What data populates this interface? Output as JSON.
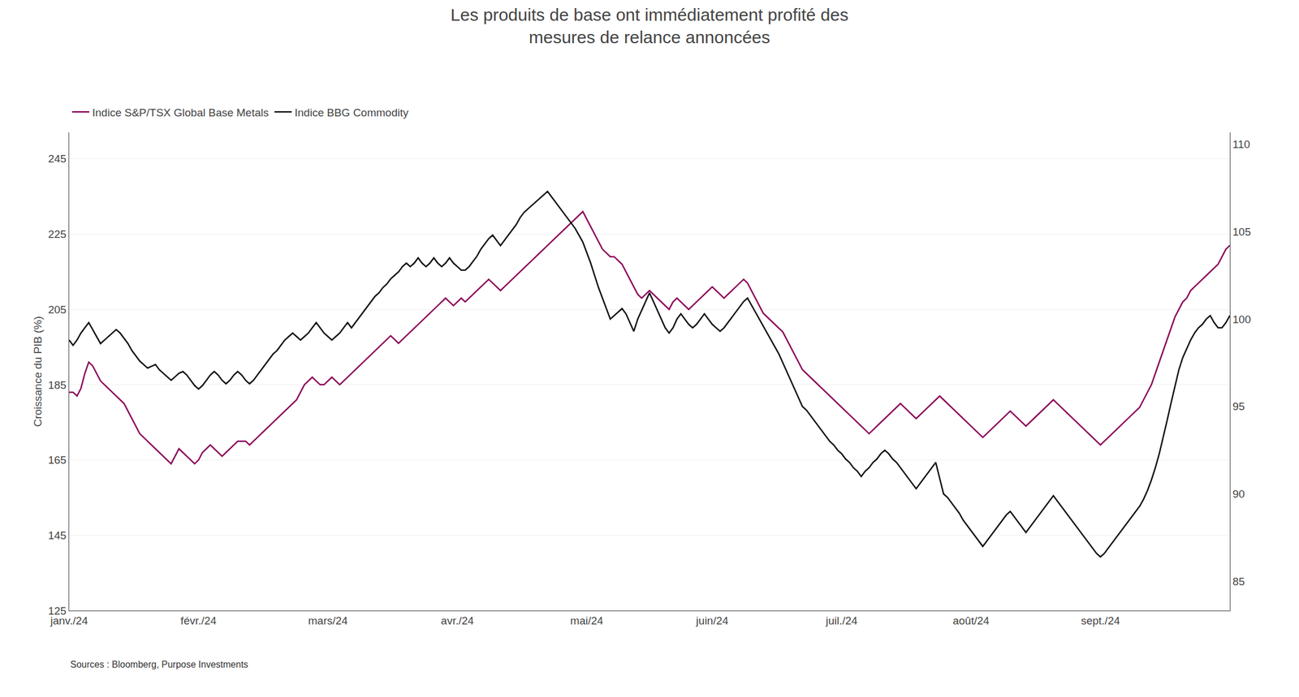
{
  "chart_data": {
    "type": "line",
    "title": "Les produits de base ont immédiatement profité des\nmesures de relance annoncées",
    "ylabel": "Croissance du PIB (%)",
    "annotations": [
      "Sources : Bloomberg, Purpose Investments"
    ],
    "legend": "upper left",
    "grid": true,
    "ylim": [
      125,
      252
    ],
    "yticks": [
      125,
      145,
      165,
      185,
      205,
      225,
      245
    ],
    "y2lim": [
      83.33,
      110.67
    ],
    "y2ticks": [
      85,
      90,
      95,
      100,
      105,
      110
    ],
    "categories": [
      "janv./24",
      null,
      null,
      null,
      null,
      null,
      null,
      null,
      null,
      null,
      null,
      null,
      null,
      null,
      null,
      null,
      null,
      null,
      null,
      null,
      null,
      null,
      null,
      null,
      null,
      null,
      null,
      null,
      null,
      null,
      null,
      null,
      null,
      "févr./24",
      null,
      null,
      null,
      null,
      null,
      null,
      null,
      null,
      null,
      null,
      null,
      null,
      null,
      null,
      null,
      null,
      null,
      null,
      null,
      null,
      null,
      null,
      null,
      null,
      null,
      null,
      null,
      null,
      null,
      null,
      null,
      null,
      "mars/24",
      null,
      null,
      null,
      null,
      null,
      null,
      null,
      null,
      null,
      null,
      null,
      null,
      null,
      null,
      null,
      null,
      null,
      null,
      null,
      null,
      null,
      null,
      null,
      null,
      null,
      null,
      null,
      null,
      null,
      null,
      null,
      null,
      "avr./24",
      null,
      null,
      null,
      null,
      null,
      null,
      null,
      null,
      null,
      null,
      null,
      null,
      null,
      null,
      null,
      null,
      null,
      null,
      null,
      null,
      null,
      null,
      null,
      null,
      null,
      null,
      null,
      null,
      null,
      null,
      null,
      null,
      "mai/24",
      null,
      null,
      null,
      null,
      null,
      null,
      null,
      null,
      null,
      null,
      null,
      null,
      null,
      null,
      null,
      null,
      null,
      null,
      null,
      null,
      null,
      null,
      null,
      null,
      null,
      null,
      null,
      null,
      null,
      null,
      null,
      "juin/24",
      null,
      null,
      null,
      null,
      null,
      null,
      null,
      null,
      null,
      null,
      null,
      null,
      null,
      null,
      null,
      null,
      null,
      null,
      null,
      null,
      null,
      null,
      null,
      null,
      null,
      null,
      null,
      null,
      null,
      null,
      null,
      null,
      "juil./24",
      null,
      null,
      null,
      null,
      null,
      null,
      null,
      null,
      null,
      null,
      null,
      null,
      null,
      null,
      null,
      null,
      null,
      null,
      null,
      null,
      null,
      null,
      null,
      null,
      null,
      null,
      null,
      null,
      null,
      null,
      null,
      null,
      "août/24",
      null,
      null,
      null,
      null,
      null,
      null,
      null,
      null,
      null,
      null,
      null,
      null,
      null,
      null,
      null,
      null,
      null,
      null,
      null,
      null,
      null,
      null,
      null,
      null,
      null,
      null,
      null,
      null,
      null,
      null,
      null,
      null,
      "sept./24",
      null,
      null,
      null,
      null,
      null,
      null,
      null,
      null,
      null,
      null,
      null,
      null,
      null,
      null,
      null,
      null,
      null,
      null,
      null,
      null,
      null,
      null,
      null,
      null,
      null,
      null,
      null,
      null,
      null,
      null,
      null,
      null,
      null
    ],
    "series": [
      {
        "name": "Indice S&P/TSX Global Base Metals",
        "color": "#8B0057",
        "values": [
          183,
          183,
          182,
          184,
          188,
          191,
          190,
          188,
          186,
          185,
          184,
          183,
          182,
          181,
          180,
          178,
          176,
          174,
          172,
          171,
          170,
          169,
          168,
          167,
          166,
          165,
          164,
          166,
          168,
          167,
          166,
          165,
          164,
          165,
          167,
          168,
          169,
          168,
          167,
          166,
          167,
          168,
          169,
          170,
          170,
          170,
          169,
          170,
          171,
          172,
          173,
          174,
          175,
          176,
          177,
          178,
          179,
          180,
          181,
          183,
          185,
          186,
          187,
          186,
          185,
          185,
          186,
          187,
          186,
          185,
          186,
          187,
          188,
          189,
          190,
          191,
          192,
          193,
          194,
          195,
          196,
          197,
          198,
          197,
          196,
          197,
          198,
          199,
          200,
          201,
          202,
          203,
          204,
          205,
          206,
          207,
          208,
          207,
          206,
          207,
          208,
          207,
          208,
          209,
          210,
          211,
          212,
          213,
          212,
          211,
          210,
          211,
          212,
          213,
          214,
          215,
          216,
          217,
          218,
          219,
          220,
          221,
          222,
          223,
          224,
          225,
          226,
          227,
          228,
          229,
          230,
          231,
          229,
          227,
          225,
          223,
          221,
          220,
          219,
          219,
          218,
          217,
          215,
          213,
          211,
          209,
          208,
          209,
          210,
          209,
          208,
          207,
          206,
          205,
          207,
          208,
          207,
          206,
          205,
          206,
          207,
          208,
          209,
          210,
          211,
          210,
          209,
          208,
          209,
          210,
          211,
          212,
          213,
          212,
          210,
          208,
          206,
          204,
          203,
          202,
          201,
          200,
          199,
          197,
          195,
          193,
          191,
          189,
          188,
          187,
          186,
          185,
          184,
          183,
          182,
          181,
          180,
          179,
          178,
          177,
          176,
          175,
          174,
          173,
          172,
          173,
          174,
          175,
          176,
          177,
          178,
          179,
          180,
          179,
          178,
          177,
          176,
          177,
          178,
          179,
          180,
          181,
          182,
          181,
          180,
          179,
          178,
          177,
          176,
          175,
          174,
          173,
          172,
          171,
          172,
          173,
          174,
          175,
          176,
          177,
          178,
          177,
          176,
          175,
          174,
          175,
          176,
          177,
          178,
          179,
          180,
          181,
          180,
          179,
          178,
          177,
          176,
          175,
          174,
          173,
          172,
          171,
          170,
          169,
          170,
          171,
          172,
          173,
          174,
          175,
          176,
          177,
          178,
          179,
          181,
          183,
          185,
          188,
          191,
          194,
          197,
          200,
          203,
          205,
          207,
          208,
          210,
          211,
          212,
          213,
          214,
          215,
          216,
          217,
          219,
          221,
          222
        ]
      },
      {
        "name": "Indice BBG Commodity",
        "color": "#111111",
        "axis": "y2",
        "values": [
          98.8,
          98.5,
          98.8,
          99.2,
          99.5,
          99.8,
          99.4,
          99.0,
          98.6,
          98.8,
          99.0,
          99.2,
          99.4,
          99.2,
          98.9,
          98.6,
          98.2,
          97.9,
          97.6,
          97.4,
          97.2,
          97.3,
          97.4,
          97.1,
          96.9,
          96.7,
          96.5,
          96.7,
          96.9,
          97.0,
          96.8,
          96.5,
          96.2,
          96.0,
          96.2,
          96.5,
          96.8,
          97.0,
          96.8,
          96.5,
          96.3,
          96.5,
          96.8,
          97.0,
          96.8,
          96.5,
          96.3,
          96.5,
          96.8,
          97.1,
          97.4,
          97.7,
          98.0,
          98.2,
          98.5,
          98.8,
          99.0,
          99.2,
          99.0,
          98.8,
          99.0,
          99.2,
          99.5,
          99.8,
          99.5,
          99.2,
          99.0,
          98.8,
          99.0,
          99.2,
          99.5,
          99.8,
          99.5,
          99.8,
          100.1,
          100.4,
          100.7,
          101.0,
          101.3,
          101.5,
          101.8,
          102.0,
          102.3,
          102.5,
          102.7,
          103.0,
          103.2,
          103.0,
          103.2,
          103.5,
          103.2,
          103.0,
          103.2,
          103.5,
          103.2,
          103.0,
          103.2,
          103.5,
          103.2,
          103.0,
          102.8,
          102.8,
          103.0,
          103.3,
          103.6,
          104.0,
          104.3,
          104.6,
          104.8,
          104.5,
          104.2,
          104.5,
          104.8,
          105.1,
          105.4,
          105.8,
          106.1,
          106.3,
          106.5,
          106.7,
          106.9,
          107.1,
          107.3,
          107.0,
          106.7,
          106.4,
          106.1,
          105.8,
          105.5,
          105.2,
          104.8,
          104.4,
          103.8,
          103.2,
          102.5,
          101.8,
          101.2,
          100.6,
          100.0,
          100.2,
          100.4,
          100.6,
          100.3,
          99.8,
          99.3,
          100.0,
          100.5,
          101.0,
          101.5,
          101.0,
          100.5,
          100.0,
          99.5,
          99.2,
          99.5,
          100.0,
          100.3,
          100.0,
          99.7,
          99.5,
          99.7,
          100.0,
          100.3,
          100.0,
          99.7,
          99.5,
          99.3,
          99.5,
          99.8,
          100.1,
          100.4,
          100.7,
          101.0,
          101.2,
          100.8,
          100.4,
          100.0,
          99.6,
          99.2,
          98.8,
          98.4,
          98.0,
          97.5,
          97.0,
          96.5,
          96.0,
          95.5,
          95.0,
          94.8,
          94.5,
          94.2,
          93.9,
          93.6,
          93.3,
          93.0,
          92.8,
          92.5,
          92.3,
          92.0,
          91.8,
          91.5,
          91.3,
          91.0,
          91.3,
          91.5,
          91.8,
          92.0,
          92.3,
          92.5,
          92.3,
          92.0,
          91.8,
          91.5,
          91.2,
          90.9,
          90.6,
          90.3,
          90.6,
          90.9,
          91.2,
          91.5,
          91.8,
          90.9,
          90.0,
          89.8,
          89.5,
          89.2,
          88.9,
          88.5,
          88.2,
          87.9,
          87.6,
          87.3,
          87.0,
          87.3,
          87.6,
          87.9,
          88.2,
          88.5,
          88.8,
          89.0,
          88.7,
          88.4,
          88.1,
          87.8,
          88.1,
          88.4,
          88.7,
          89.0,
          89.3,
          89.6,
          89.9,
          89.6,
          89.3,
          89.0,
          88.7,
          88.4,
          88.1,
          87.8,
          87.5,
          87.2,
          86.9,
          86.6,
          86.4,
          86.6,
          86.9,
          87.2,
          87.5,
          87.8,
          88.1,
          88.4,
          88.7,
          89.0,
          89.3,
          89.7,
          90.2,
          90.8,
          91.5,
          92.3,
          93.2,
          94.2,
          95.2,
          96.2,
          97.1,
          97.8,
          98.3,
          98.8,
          99.2,
          99.5,
          99.7,
          100.0,
          100.2,
          99.8,
          99.5,
          99.5,
          99.8,
          100.2
        ]
      }
    ]
  }
}
